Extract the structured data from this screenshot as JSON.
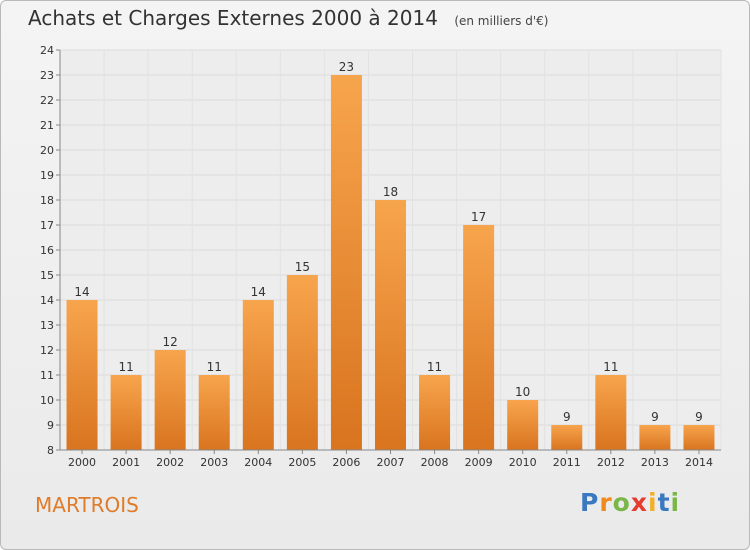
{
  "header": {
    "title": "Achats et Charges Externes 2000 à 2014",
    "subtitle": "(en milliers d'€)"
  },
  "footer": {
    "commune": "MARTROIS",
    "logo": "Proxiti"
  },
  "colors": {
    "bar_top": "#f7a54d",
    "bar_bottom": "#d9741f",
    "commune_text": "#e07b2a"
  },
  "chart_data": {
    "type": "bar",
    "title": "Achats et Charges Externes 2000 à 2014",
    "subtitle": "(en milliers d'€)",
    "categories": [
      "2000",
      "2001",
      "2002",
      "2003",
      "2004",
      "2005",
      "2006",
      "2007",
      "2008",
      "2009",
      "2010",
      "2011",
      "2012",
      "2013",
      "2014"
    ],
    "values": [
      14,
      11,
      12,
      11,
      14,
      15,
      23,
      18,
      11,
      17,
      10,
      9,
      11,
      9,
      9
    ],
    "ylim": [
      8,
      24
    ],
    "yticks": [
      8,
      9,
      10,
      11,
      12,
      13,
      14,
      15,
      16,
      17,
      18,
      19,
      20,
      21,
      22,
      23,
      24
    ],
    "xlabel": "",
    "ylabel": "",
    "grid": true,
    "data_labels": true
  }
}
